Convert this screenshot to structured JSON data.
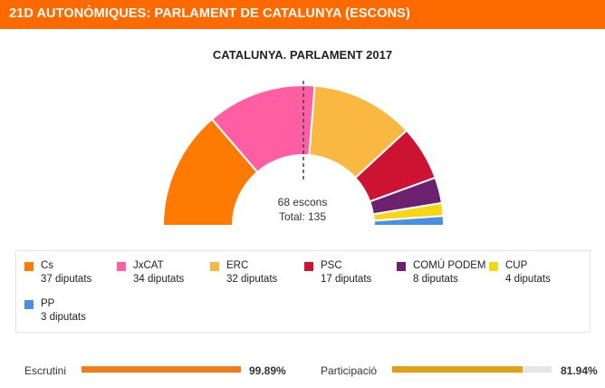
{
  "header": {
    "title": "21D AUTONÒMIQUES: PARLAMENT DE CATALUNYA (ESCONS)"
  },
  "colors": {
    "header_bg": "#ff6a00",
    "scrutiny_bar": "#f07d1a",
    "participation_bar": "#e0a117",
    "track": "#e6e6e6"
  },
  "chart_data": {
    "type": "pie",
    "variant": "semicircle-hemicycle",
    "title": "CATALUNYA. PARLAMENT 2017",
    "total": 135,
    "majority": 68,
    "center_text": {
      "majority": "68 escons",
      "total": "Total: 135"
    },
    "categories": [
      "Cs",
      "JxCAT",
      "ERC",
      "PSC",
      "COMÚ PODEM",
      "CUP",
      "PP"
    ],
    "values": [
      37,
      34,
      32,
      17,
      8,
      4,
      3
    ],
    "colors": [
      "#ff7a00",
      "#ff5fa2",
      "#f9b842",
      "#cc1331",
      "#6c216e",
      "#f6d615",
      "#4a90e2"
    ],
    "legend": [
      {
        "name": "Cs",
        "value": "37 diputats"
      },
      {
        "name": "JxCAT",
        "value": "34 diputats"
      },
      {
        "name": "ERC",
        "value": "32 diputats"
      },
      {
        "name": "PSC",
        "value": "17 diputats"
      },
      {
        "name": "COMÚ PODEM",
        "value": "8 diputats"
      },
      {
        "name": "CUP",
        "value": "4 diputats"
      },
      {
        "name": "PP",
        "value": "3 diputats"
      }
    ]
  },
  "progress": {
    "scrutiny": {
      "label": "Escrutini",
      "value_text": "99.89%",
      "value": 99.89
    },
    "participation": {
      "label": "Participació",
      "value_text": "81.94%",
      "value": 81.94
    }
  }
}
